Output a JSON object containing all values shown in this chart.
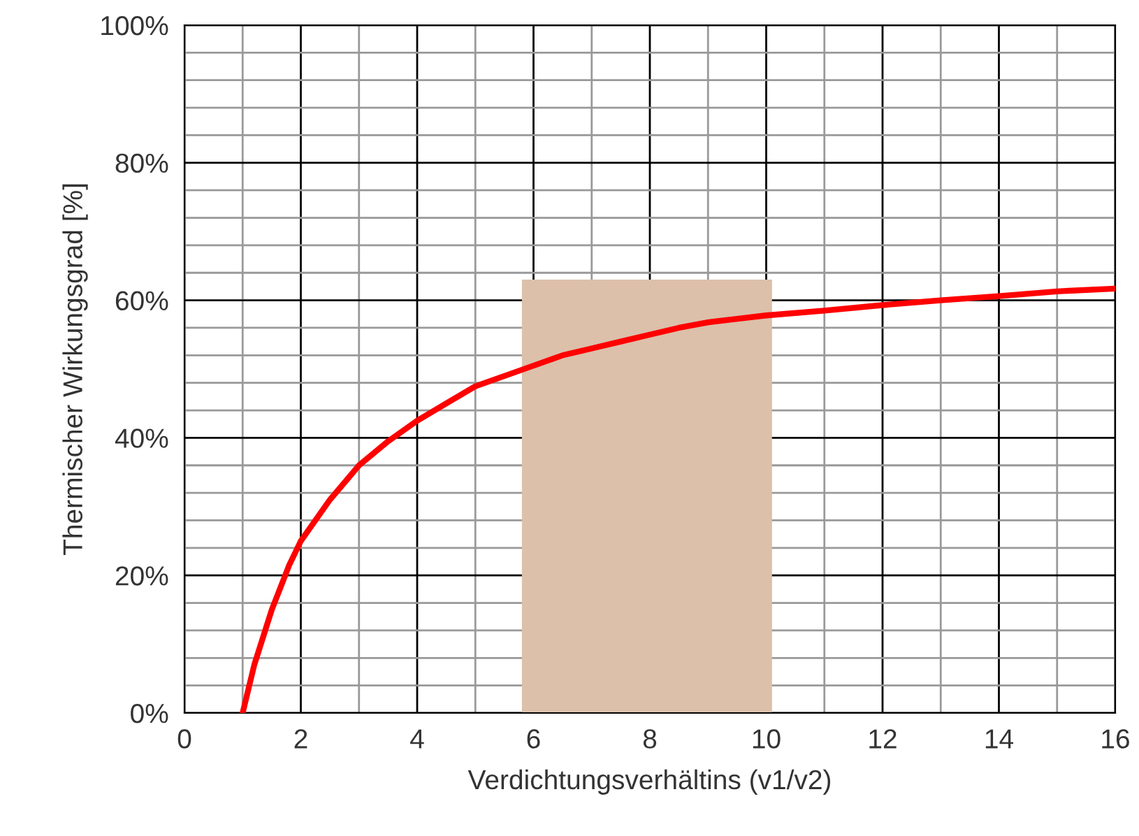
{
  "chart_data": {
    "type": "line",
    "xlabel": "Verdichtungsverhältins (v1/v2)",
    "ylabel": "Thermischer Wirkungsgrad [%]",
    "series": [
      {
        "type": "area",
        "color": "#dcc0aa",
        "x": [
          5.8,
          10.1
        ],
        "values": [
          63,
          63
        ]
      },
      {
        "color": "#ff0000",
        "x": [
          1,
          1.2,
          1.5,
          1.8,
          2,
          2.5,
          3,
          3.5,
          4,
          4.5,
          5,
          5.5,
          6,
          6.5,
          7,
          7.5,
          8,
          8.5,
          9,
          9.5,
          10,
          11,
          12,
          13,
          14,
          15,
          16
        ],
        "values": [
          0,
          7,
          15,
          21.5,
          25,
          31,
          36,
          39.5,
          42.5,
          45,
          47.5,
          49,
          50.5,
          52,
          53,
          54,
          55,
          56,
          56.8,
          57.3,
          57.8,
          58.5,
          59.3,
          60,
          60.6,
          61.3,
          61.7
        ]
      }
    ],
    "xlim": [
      0,
      16
    ],
    "ylim": [
      0,
      100
    ],
    "xticks": [
      0,
      {
        "value": 1,
        "label": null
      },
      2,
      {
        "value": 3,
        "label": null
      },
      4,
      {
        "value": 5,
        "label": null
      },
      6,
      {
        "value": 7,
        "label": null
      },
      8,
      {
        "value": 9,
        "label": null
      },
      10,
      {
        "value": 11,
        "label": null
      },
      12,
      {
        "value": 13,
        "label": null
      },
      14,
      {
        "value": 15,
        "label": null
      },
      16
    ],
    "yticks": [
      {
        "value": 0,
        "label": "0%"
      },
      {
        "value": 4,
        "label": null
      },
      {
        "value": 8,
        "label": null
      },
      {
        "value": 12,
        "label": null
      },
      {
        "value": 16,
        "label": null
      },
      {
        "value": 20,
        "label": "20%"
      },
      {
        "value": 24,
        "label": null
      },
      {
        "value": 28,
        "label": null
      },
      {
        "value": 32,
        "label": null
      },
      {
        "value": 36,
        "label": null
      },
      {
        "value": 40,
        "label": "40%"
      },
      {
        "value": 44,
        "label": null
      },
      {
        "value": 48,
        "label": null
      },
      {
        "value": 52,
        "label": null
      },
      {
        "value": 56,
        "label": null
      },
      {
        "value": 60,
        "label": "60%"
      },
      {
        "value": 64,
        "label": null
      },
      {
        "value": 68,
        "label": null
      },
      {
        "value": 72,
        "label": null
      },
      {
        "value": 76,
        "label": null
      },
      {
        "value": 80,
        "label": "80%"
      },
      {
        "value": 84,
        "label": null
      },
      {
        "value": 88,
        "label": null
      },
      {
        "value": 92,
        "label": null
      },
      {
        "value": 96,
        "label": null
      },
      {
        "value": 100,
        "label": "100%"
      }
    ],
    "grid": true,
    "line_style": "solid",
    "marker": "none"
  }
}
